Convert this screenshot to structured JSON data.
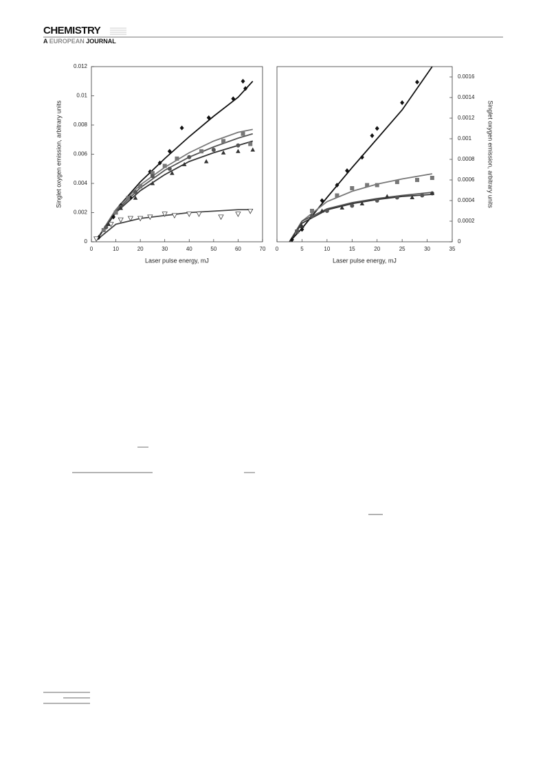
{
  "header": {
    "journal": "CHEMISTRY",
    "subtitle": [
      "A",
      "EUROPEAN",
      "JOURNAL"
    ]
  },
  "chart_data": [
    {
      "type": "scatter",
      "xlabel": "Laser pulse energy, mJ",
      "ylabel": "Singlet oxygen emission, arbitrary units",
      "xlim": [
        0,
        70
      ],
      "xticks": [
        0,
        10,
        20,
        30,
        40,
        50,
        60,
        70
      ],
      "ylim": [
        0,
        0.012
      ],
      "yticks": [
        0,
        0.002,
        0.004,
        0.006,
        0.008,
        0.01,
        0.012
      ],
      "yaxis_side": "left",
      "series": [
        {
          "marker": "diamond",
          "color": "#111111",
          "x": [
            3,
            6,
            9,
            12,
            16,
            20,
            24,
            28,
            32,
            37,
            48,
            58,
            62,
            63
          ],
          "values": [
            0.0003,
            0.001,
            0.0017,
            0.0025,
            0.003,
            0.0038,
            0.0048,
            0.0054,
            0.0062,
            0.0078,
            0.0085,
            0.0098,
            0.011,
            0.0105
          ],
          "fit_x": [
            2,
            10,
            20,
            30,
            40,
            50,
            60,
            66
          ],
          "fit_values": [
            0.0001,
            0.0022,
            0.0041,
            0.0057,
            0.0072,
            0.0086,
            0.0099,
            0.011
          ]
        },
        {
          "marker": "square",
          "color": "#777777",
          "x": [
            5,
            10,
            15,
            20,
            25,
            30,
            35,
            45,
            54,
            62,
            65
          ],
          "values": [
            0.0008,
            0.002,
            0.003,
            0.0038,
            0.0047,
            0.0052,
            0.0057,
            0.0062,
            0.0069,
            0.0074,
            0.0067
          ],
          "fit_x": [
            2,
            10,
            20,
            30,
            40,
            50,
            60,
            66
          ],
          "fit_values": [
            0.0001,
            0.0022,
            0.0039,
            0.0051,
            0.0061,
            0.0069,
            0.0075,
            0.0077
          ]
        },
        {
          "marker": "circle",
          "color": "#555555",
          "x": [
            6,
            12,
            18,
            25,
            32,
            40,
            50,
            60
          ],
          "values": [
            0.001,
            0.0024,
            0.0034,
            0.0045,
            0.005,
            0.0058,
            0.0063,
            0.0066
          ],
          "fit_x": [
            2,
            10,
            20,
            30,
            40,
            50,
            60,
            66
          ],
          "fit_values": [
            0.0001,
            0.0021,
            0.0037,
            0.0049,
            0.0058,
            0.0065,
            0.0071,
            0.0074
          ]
        },
        {
          "marker": "triangle",
          "color": "#333333",
          "x": [
            7,
            12,
            18,
            25,
            33,
            38,
            47,
            54,
            60,
            66
          ],
          "values": [
            0.0012,
            0.0023,
            0.003,
            0.004,
            0.0047,
            0.0053,
            0.0055,
            0.0061,
            0.0062,
            0.0063
          ],
          "fit_x": [
            2,
            10,
            20,
            30,
            40,
            50,
            60,
            66
          ],
          "fit_values": [
            0.0001,
            0.002,
            0.0035,
            0.0046,
            0.0055,
            0.0061,
            0.0066,
            0.0069
          ]
        },
        {
          "marker": "triangle-down-open",
          "color": "#444444",
          "x": [
            2,
            8,
            12,
            16,
            20,
            24,
            30,
            34,
            40,
            44,
            53,
            60,
            65
          ],
          "values": [
            0.0002,
            0.0012,
            0.0015,
            0.0016,
            0.0016,
            0.0017,
            0.0019,
            0.0018,
            0.0019,
            0.0019,
            0.0017,
            0.0019,
            0.0021
          ],
          "fit_x": [
            2,
            10,
            20,
            30,
            40,
            50,
            60,
            66
          ],
          "fit_values": [
            0.0001,
            0.0012,
            0.0016,
            0.0018,
            0.002,
            0.0021,
            0.0022,
            0.0022
          ]
        }
      ]
    },
    {
      "type": "scatter",
      "xlabel": "Laser pulse energy, mJ",
      "ylabel": "Singlet oxygen emission, arbitrary units",
      "xlim": [
        0,
        35
      ],
      "xticks": [
        0,
        5,
        10,
        15,
        20,
        25,
        30,
        35
      ],
      "ylim": [
        0,
        0.0017
      ],
      "yticks": [
        0,
        0.0002,
        0.0004,
        0.0006,
        0.0008,
        0.001,
        0.0012,
        0.0014,
        0.0016
      ],
      "yaxis_side": "right",
      "series": [
        {
          "marker": "diamond",
          "color": "#111111",
          "x": [
            3,
            5,
            7,
            9,
            12,
            14,
            17,
            19,
            20,
            25,
            28
          ],
          "values": [
            2e-05,
            0.00012,
            0.00025,
            0.0004,
            0.00055,
            0.00069,
            0.00082,
            0.00103,
            0.0011,
            0.00135,
            0.00155
          ],
          "fit_x": [
            2.5,
            5,
            10,
            15,
            20,
            25,
            31
          ],
          "fit_values": [
            0,
            0.00013,
            0.00043,
            0.00072,
            0.001,
            0.00128,
            0.0017
          ]
        },
        {
          "marker": "square",
          "color": "#777777",
          "x": [
            4,
            7,
            12,
            15,
            18,
            20,
            24,
            28,
            31
          ],
          "values": [
            0.0001,
            0.0003,
            0.00045,
            0.00052,
            0.00055,
            0.00055,
            0.00058,
            0.0006,
            0.00062
          ],
          "fit_x": [
            2.5,
            5,
            10,
            15,
            20,
            25,
            31
          ],
          "fit_values": [
            0,
            0.0002,
            0.00039,
            0.00049,
            0.00056,
            0.00061,
            0.00066
          ]
        },
        {
          "marker": "circle",
          "color": "#555555",
          "x": [
            4,
            7,
            10,
            15,
            20,
            24,
            29,
            31
          ],
          "values": [
            0.0001,
            0.00025,
            0.0003,
            0.00035,
            0.0004,
            0.00043,
            0.00045,
            0.00047
          ],
          "fit_x": [
            2.5,
            5,
            10,
            15,
            20,
            25,
            31
          ],
          "fit_values": [
            0,
            0.0002,
            0.00032,
            0.00038,
            0.00042,
            0.00045,
            0.00048
          ]
        },
        {
          "marker": "triangle",
          "color": "#333333",
          "x": [
            5,
            9,
            13,
            17,
            22,
            27,
            31
          ],
          "values": [
            0.00015,
            0.0003,
            0.00033,
            0.00037,
            0.00044,
            0.00043,
            0.00047
          ],
          "fit_x": [
            2.5,
            5,
            10,
            15,
            20,
            25,
            31
          ],
          "fit_values": [
            0,
            0.00018,
            0.00031,
            0.00037,
            0.00041,
            0.00044,
            0.00046
          ]
        }
      ]
    }
  ]
}
